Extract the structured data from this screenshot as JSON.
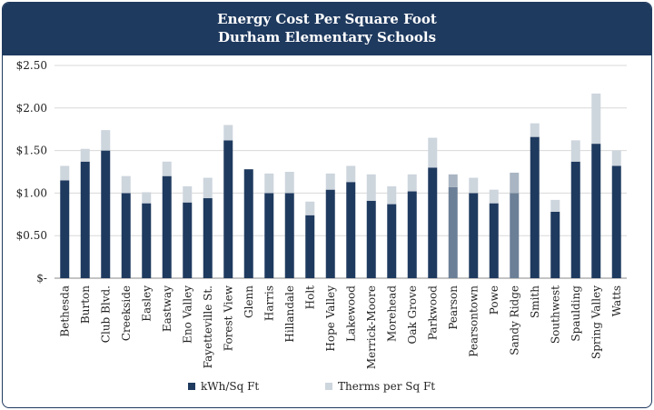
{
  "chart_data": {
    "type": "bar",
    "stacked": true,
    "title": "Energy Cost Per Square Foot",
    "subtitle": "Durham Elementary Schools",
    "xlabel": "",
    "ylabel": "",
    "ylim": [
      0,
      2.5
    ],
    "yticks": [
      {
        "value": 0,
        "label": "$-"
      },
      {
        "value": 0.5,
        "label": "$0.50"
      },
      {
        "value": 1.0,
        "label": "$1.00"
      },
      {
        "value": 1.5,
        "label": "$1.50"
      },
      {
        "value": 2.0,
        "label": "$2.00"
      },
      {
        "value": 2.5,
        "label": "$2.50"
      }
    ],
    "grid": true,
    "legend_position": "bottom",
    "categories": [
      "Bethesda",
      "Burton",
      "Club Blvd.",
      "Creekside",
      "Easley",
      "Eastway",
      "Eno Valley",
      "Fayetteville St.",
      "Forest View",
      "Glenn",
      "Harris",
      "Hillandale",
      "Holt",
      "Hope Valley",
      "Lakewood",
      "Merrick-Moore",
      "Morehead",
      "Oak Grove",
      "Parkwood",
      "Pearson",
      "Pearsontown",
      "Powe",
      "Sandy Ridge",
      "Smith",
      "Southwest",
      "Spaulding",
      "Spring Valley",
      "Watts"
    ],
    "highlighted_categories": [
      "Pearson",
      "Sandy Ridge"
    ],
    "series": [
      {
        "name": "kWh/Sq Ft",
        "color": "#1f3a5f",
        "highlight_color": "#6b7f97",
        "values": [
          1.15,
          1.37,
          1.5,
          1.0,
          0.88,
          1.2,
          0.89,
          0.94,
          1.62,
          1.28,
          1.0,
          1.0,
          0.74,
          1.04,
          1.13,
          0.91,
          0.87,
          1.02,
          1.3,
          1.07,
          1.0,
          0.88,
          1.0,
          1.66,
          0.78,
          1.37,
          1.58,
          1.32
        ]
      },
      {
        "name": "Therms per Sq Ft",
        "color": "#cdd5dd",
        "highlight_color": "#a9b5c2",
        "values": [
          0.17,
          0.15,
          0.24,
          0.2,
          0.13,
          0.17,
          0.19,
          0.24,
          0.18,
          0.0,
          0.23,
          0.25,
          0.16,
          0.19,
          0.19,
          0.31,
          0.21,
          0.2,
          0.35,
          0.15,
          0.18,
          0.16,
          0.24,
          0.16,
          0.14,
          0.25,
          0.59,
          0.18
        ]
      }
    ]
  }
}
